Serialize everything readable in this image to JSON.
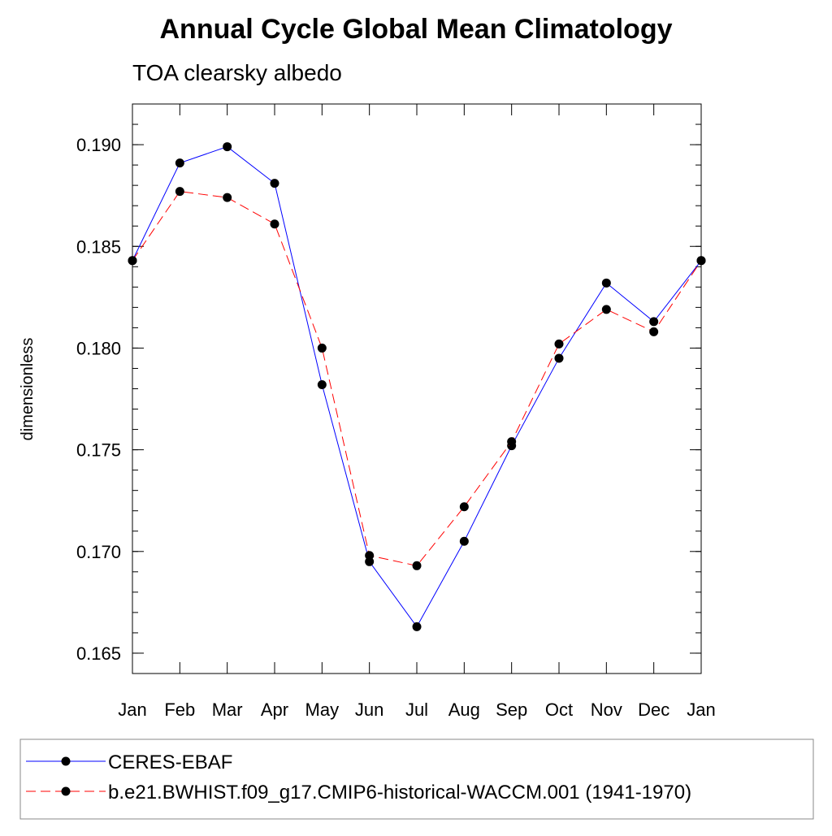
{
  "chart_data": {
    "type": "line",
    "title": "Annual Cycle Global Mean Climatology",
    "subtitle": "TOA clearsky albedo",
    "xlabel": "",
    "ylabel": "dimensionless",
    "categories": [
      "Jan",
      "Feb",
      "Mar",
      "Apr",
      "May",
      "Jun",
      "Jul",
      "Aug",
      "Sep",
      "Oct",
      "Nov",
      "Dec",
      "Jan"
    ],
    "ylim": [
      0.164,
      0.192
    ],
    "yticks": [
      "0.165",
      "0.170",
      "0.175",
      "0.180",
      "0.185",
      "0.190"
    ],
    "grid": false,
    "legend_position": "bottom",
    "series": [
      {
        "name": "CERES-EBAF",
        "color": "#0000ff",
        "line_style": "solid",
        "marker": "filled-circle",
        "values": [
          0.1843,
          0.1891,
          0.1899,
          0.1881,
          0.1782,
          0.1695,
          0.1663,
          0.1705,
          0.1752,
          0.1795,
          0.1832,
          0.1813,
          0.1843
        ]
      },
      {
        "name": "b.e21.BWHIST.f09_g17.CMIP6-historical-WACCM.001 (1941-1970)",
        "color": "#ff0000",
        "line_style": "dashed",
        "marker": "filled-circle",
        "values": [
          0.1843,
          0.1877,
          0.1874,
          0.1861,
          0.18,
          0.1698,
          0.1693,
          0.1722,
          0.1754,
          0.1802,
          0.1819,
          0.1808,
          0.1843
        ]
      }
    ]
  }
}
